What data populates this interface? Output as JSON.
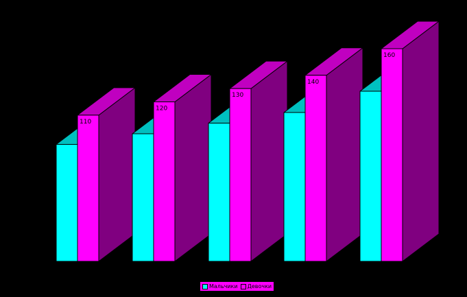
{
  "chart_data": {
    "type": "bar",
    "style": "3d-clustered",
    "categories": [
      "",
      "",
      "",
      "",
      ""
    ],
    "series": [
      {
        "name": "Мальчики",
        "values": [
          88,
          96,
          104,
          112,
          128
        ],
        "color": "#00ffff",
        "top_color": "#00c0c0",
        "side_color": "#00c0c0"
      },
      {
        "name": "Девочки",
        "values": [
          110,
          120,
          130,
          140,
          160
        ],
        "color": "#ff00ff",
        "top_color": "#c000c0",
        "side_color": "#800080"
      }
    ],
    "data_labels": [
      "110",
      "120",
      "130",
      "140",
      "160"
    ],
    "title": "",
    "xlabel": "",
    "ylabel": "",
    "ylim": [
      0,
      160
    ],
    "grid": false,
    "legend_position": "bottom",
    "background": "#000000"
  }
}
